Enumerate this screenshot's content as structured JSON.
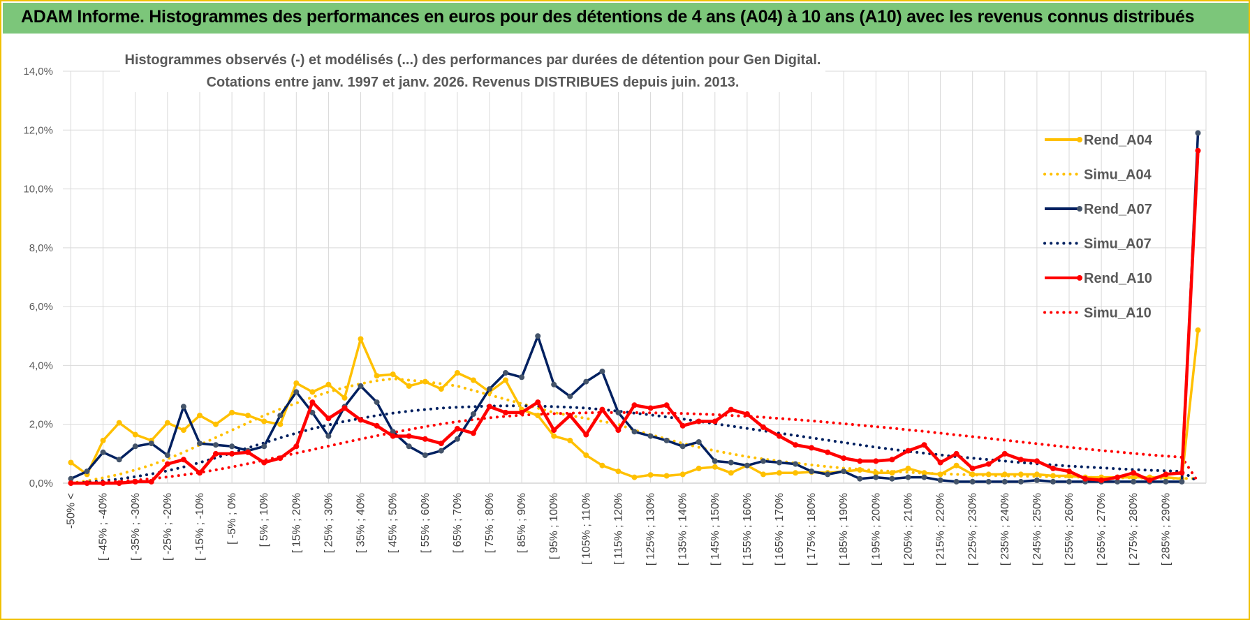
{
  "banner": {
    "title": "ADAM Informe. Histogrammes des performances en euros pour des détentions de 4 ans (A04) à 10 ans (A10) avec les revenus connus distribués"
  },
  "chart_data": {
    "type": "line",
    "title_line1": "Histogrammes observés (-) et modélisés (...) des performances par durées de détention pour Gen Digital.",
    "title_line2": "Cotations entre janv. 1997 et janv. 2026. Revenus DISTRIBUES depuis juin. 2013.",
    "ylim": [
      0,
      14
    ],
    "y_ticks": [
      "0,0%",
      "2,0%",
      "4,0%",
      "6,0%",
      "8,0%",
      "10,0%",
      "12,0%",
      "14,0%"
    ],
    "grid": true,
    "legend_position": "right",
    "x_tick_labels": [
      "-50% <",
      "[ -45% ; -40%",
      "[ -35% ; -30%",
      "[ -25% ; -20%",
      "[ -15% ; -10%",
      "[ -5% ; 0%",
      "[ 5% ; 10%",
      "[ 15% ; 20%",
      "[ 25% ; 30%",
      "[ 35% ; 40%",
      "[ 45% ; 50%",
      "[ 55% ; 60%",
      "[ 65% ; 70%",
      "[ 75% ; 80%",
      "[ 85% ; 90%",
      "[ 95% ; 100%",
      "[ 105% ; 110%",
      "[ 115% ; 120%",
      "[ 125% ; 130%",
      "[ 135% ; 140%",
      "[ 145% ; 150%",
      "[ 155% ; 160%",
      "[ 165% ; 170%",
      "[ 175% ; 180%",
      "[ 185% ; 190%",
      "[ 195% ; 200%",
      "[ 205% ; 210%",
      "[ 215% ; 220%",
      "[ 225% ; 230%",
      "[ 235% ; 240%",
      "[ 245% ; 250%",
      "[ 255% ; 260%",
      "[ 265% ; 270%",
      "[ 275% ; 280%",
      "[ 285% ; 290%"
    ],
    "series": [
      {
        "name": "Rend_A04",
        "style": "solid",
        "color": "#ffc000",
        "values": [
          0.7,
          0.3,
          1.45,
          2.05,
          1.65,
          1.45,
          2.05,
          1.8,
          2.3,
          2.0,
          2.4,
          2.3,
          2.1,
          2.0,
          3.4,
          3.1,
          3.35,
          2.9,
          4.9,
          3.65,
          3.7,
          3.3,
          3.45,
          3.2,
          3.75,
          3.5,
          3.1,
          3.5,
          2.5,
          2.3,
          1.6,
          1.45,
          0.95,
          0.6,
          0.4,
          0.2,
          0.28,
          0.25,
          0.3,
          0.5,
          0.55,
          0.35,
          0.6,
          0.3,
          0.35,
          0.35,
          0.38,
          0.35,
          0.4,
          0.45,
          0.35,
          0.35,
          0.5,
          0.35,
          0.3,
          0.6,
          0.3,
          0.3,
          0.3,
          0.3,
          0.3,
          0.25,
          0.25,
          0.2,
          0.2,
          0.2,
          0.2,
          0.2,
          0.2,
          0.15,
          5.2
        ]
      },
      {
        "name": "Simu_A04",
        "style": "dotted",
        "color": "#ffc000",
        "values": [
          0.0,
          0.08,
          0.18,
          0.3,
          0.45,
          0.62,
          0.82,
          1.05,
          1.3,
          1.55,
          1.8,
          2.05,
          2.3,
          2.52,
          2.72,
          2.92,
          3.1,
          3.25,
          3.38,
          3.48,
          3.55,
          3.5,
          3.45,
          3.38,
          3.3,
          3.15,
          3.0,
          2.85,
          2.7,
          2.55,
          2.4,
          2.3,
          2.2,
          2.1,
          2.0,
          1.8,
          1.65,
          1.5,
          1.35,
          1.22,
          1.1,
          1.0,
          0.9,
          0.82,
          0.75,
          0.68,
          0.62,
          0.56,
          0.51,
          0.47,
          0.43,
          0.4,
          0.37,
          0.34,
          0.32,
          0.3,
          0.28,
          0.26,
          0.25,
          0.24,
          0.23,
          0.22,
          0.21,
          0.2,
          0.19,
          0.18,
          0.18,
          0.17,
          0.17,
          0.16,
          0.16
        ]
      },
      {
        "name": "Rend_A07",
        "style": "solid",
        "color": "#002060",
        "values": [
          0.15,
          0.4,
          1.05,
          0.8,
          1.25,
          1.35,
          0.95,
          2.6,
          1.35,
          1.3,
          1.25,
          1.1,
          1.25,
          2.3,
          3.1,
          2.4,
          1.6,
          2.6,
          3.3,
          2.75,
          1.75,
          1.25,
          0.95,
          1.1,
          1.5,
          2.35,
          3.2,
          3.75,
          3.6,
          5.0,
          3.35,
          2.95,
          3.45,
          3.8,
          2.4,
          1.75,
          1.6,
          1.45,
          1.25,
          1.4,
          0.75,
          0.7,
          0.6,
          0.75,
          0.7,
          0.65,
          0.4,
          0.3,
          0.4,
          0.15,
          0.2,
          0.15,
          0.2,
          0.2,
          0.1,
          0.05,
          0.05,
          0.05,
          0.05,
          0.05,
          0.1,
          0.05,
          0.05,
          0.05,
          0.05,
          0.05,
          0.05,
          0.05,
          0.05,
          0.05,
          11.9
        ]
      },
      {
        "name": "Simu_A07",
        "style": "dotted",
        "color": "#002060",
        "values": [
          0.0,
          0.03,
          0.08,
          0.14,
          0.22,
          0.31,
          0.42,
          0.55,
          0.7,
          0.86,
          1.03,
          1.2,
          1.37,
          1.54,
          1.7,
          1.85,
          1.98,
          2.1,
          2.2,
          2.3,
          2.38,
          2.45,
          2.5,
          2.55,
          2.58,
          2.6,
          2.62,
          2.63,
          2.63,
          2.62,
          2.6,
          2.58,
          2.55,
          2.5,
          2.45,
          2.38,
          2.32,
          2.25,
          2.18,
          2.1,
          2.02,
          1.94,
          1.86,
          1.78,
          1.7,
          1.62,
          1.54,
          1.46,
          1.38,
          1.3,
          1.22,
          1.15,
          1.08,
          1.02,
          0.96,
          0.9,
          0.85,
          0.8,
          0.75,
          0.7,
          0.66,
          0.62,
          0.58,
          0.55,
          0.52,
          0.49,
          0.46,
          0.44,
          0.42,
          0.4,
          0.05
        ]
      },
      {
        "name": "Rend_A10",
        "style": "solid",
        "color": "#ff0000",
        "values": [
          0.0,
          0.0,
          0.0,
          0.0,
          0.05,
          0.05,
          0.65,
          0.8,
          0.35,
          1.0,
          1.0,
          1.05,
          0.7,
          0.85,
          1.25,
          2.75,
          2.2,
          2.55,
          2.15,
          1.95,
          1.6,
          1.6,
          1.5,
          1.35,
          1.85,
          1.7,
          2.6,
          2.4,
          2.4,
          2.75,
          1.8,
          2.3,
          1.65,
          2.5,
          1.8,
          2.65,
          2.55,
          2.65,
          1.95,
          2.1,
          2.1,
          2.5,
          2.35,
          1.9,
          1.6,
          1.3,
          1.2,
          1.05,
          0.85,
          0.75,
          0.75,
          0.8,
          1.1,
          1.3,
          0.7,
          1.0,
          0.5,
          0.65,
          1.0,
          0.8,
          0.75,
          0.5,
          0.4,
          0.15,
          0.1,
          0.2,
          0.35,
          0.1,
          0.3,
          0.35,
          11.3
        ]
      },
      {
        "name": "Simu_A10",
        "style": "dotted",
        "color": "#ff0000",
        "values": [
          0.0,
          0.01,
          0.03,
          0.06,
          0.1,
          0.15,
          0.21,
          0.28,
          0.36,
          0.45,
          0.55,
          0.66,
          0.78,
          0.9,
          1.02,
          1.14,
          1.26,
          1.38,
          1.5,
          1.61,
          1.72,
          1.82,
          1.92,
          2.01,
          2.09,
          2.16,
          2.22,
          2.27,
          2.31,
          2.34,
          2.36,
          2.38,
          2.39,
          2.4,
          2.4,
          2.4,
          2.39,
          2.38,
          2.37,
          2.35,
          2.33,
          2.3,
          2.27,
          2.24,
          2.2,
          2.16,
          2.12,
          2.07,
          2.02,
          1.97,
          1.92,
          1.87,
          1.81,
          1.76,
          1.7,
          1.64,
          1.58,
          1.52,
          1.46,
          1.4,
          1.34,
          1.28,
          1.22,
          1.16,
          1.11,
          1.06,
          1.01,
          0.96,
          0.92,
          0.88,
          0.05
        ]
      }
    ]
  }
}
